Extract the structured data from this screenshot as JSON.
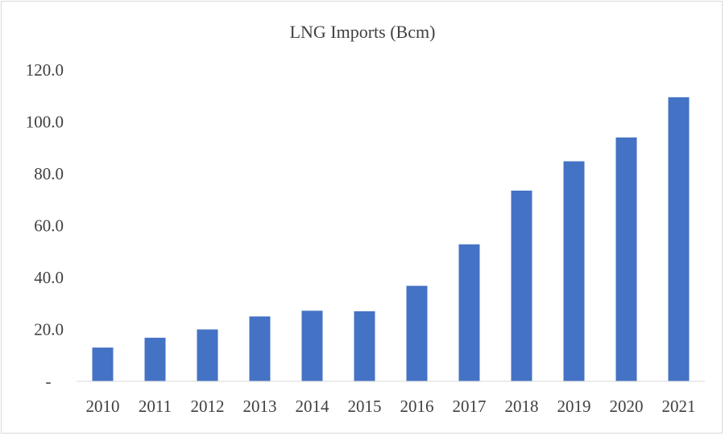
{
  "chart_data": {
    "type": "bar",
    "title": "LNG Imports (Bcm)",
    "xlabel": "",
    "ylabel": "",
    "categories": [
      "2010",
      "2011",
      "2012",
      "2013",
      "2014",
      "2015",
      "2016",
      "2017",
      "2018",
      "2019",
      "2020",
      "2021"
    ],
    "values": [
      13.0,
      16.8,
      20.0,
      25.0,
      27.2,
      27.0,
      36.8,
      52.8,
      73.5,
      84.8,
      94.0,
      109.5
    ],
    "ylim": [
      0,
      120
    ],
    "yticks": [
      0,
      20,
      40,
      60,
      80,
      100,
      120
    ],
    "ytick_labels": [
      "-",
      "20.0",
      "40.0",
      "60.0",
      "80.0",
      "100.0",
      "120.0"
    ],
    "grid": false,
    "legend": "none",
    "bar_color": "#4472c4"
  }
}
